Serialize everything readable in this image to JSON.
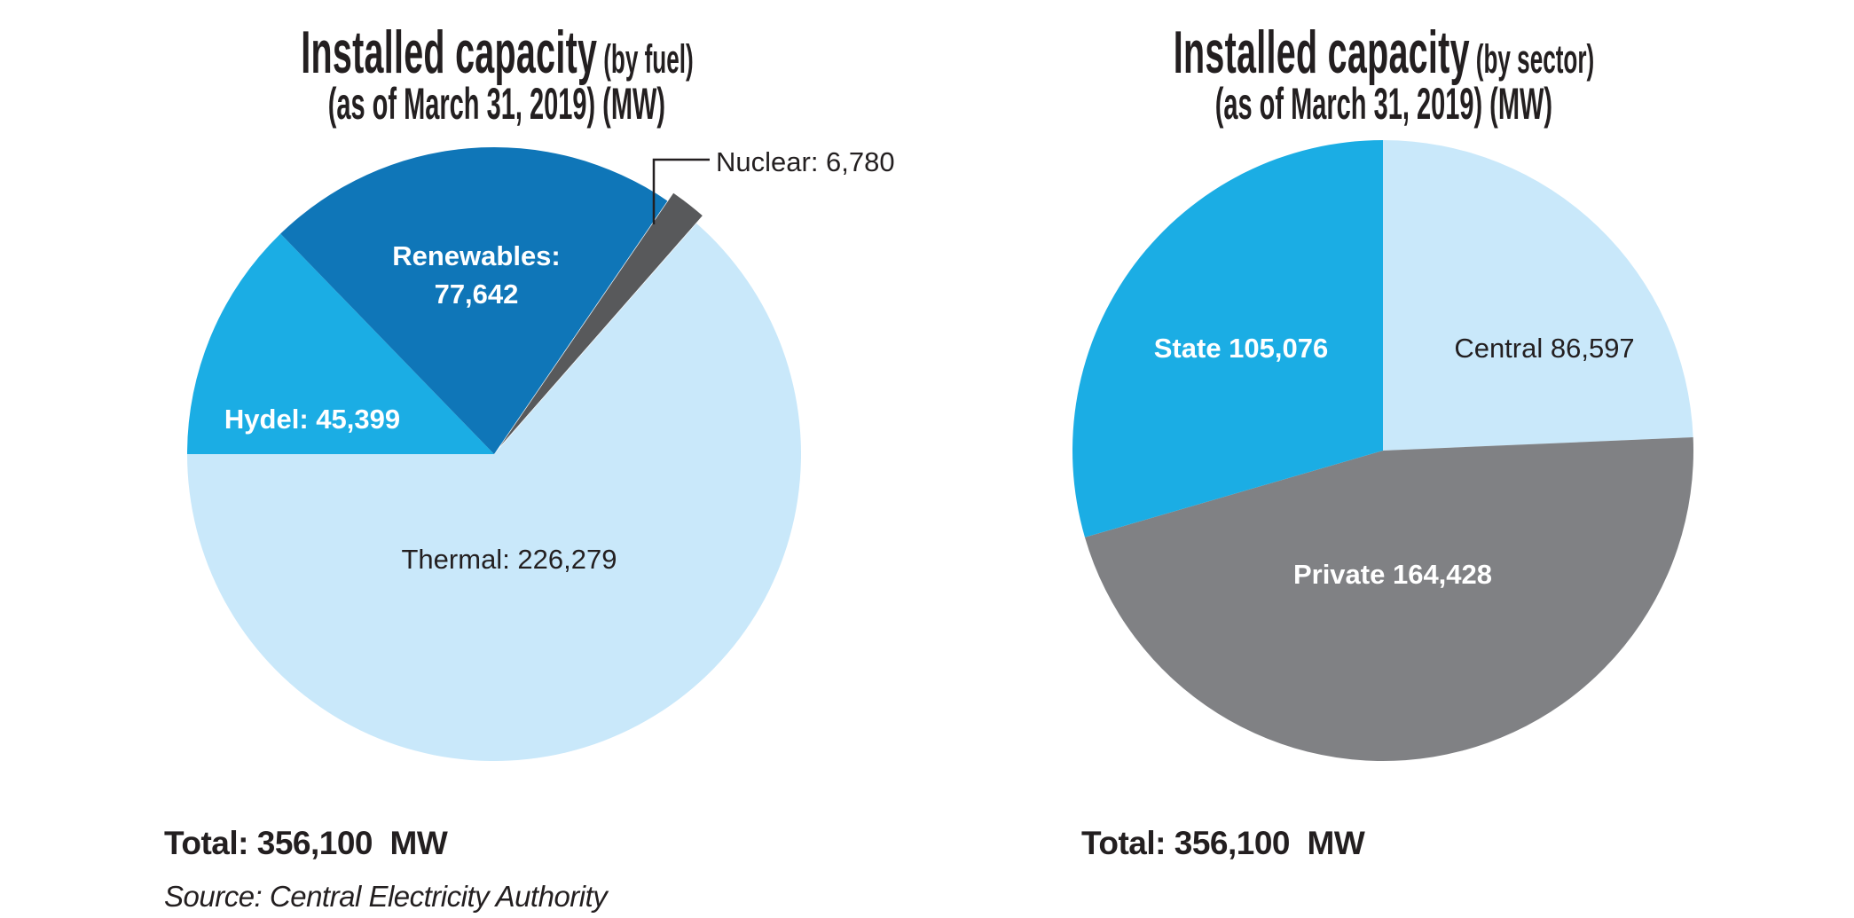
{
  "page_background": "#ffffff",
  "text_color": "#231F20",
  "chart_data": [
    {
      "type": "pie",
      "title": "Installed capacity",
      "title_qualifier": "(by fuel)",
      "subtitle": "(as of March 31, 2019) (MW)",
      "total_label": "Total: 356,100  MW",
      "source": "Source: Central Electricity Authority",
      "total_value": 356100,
      "unit": "MW",
      "start_angle_clockwise_from_12": 270,
      "legend_position": "inside-slices",
      "slices": [
        {
          "name": "Hydel",
          "value": 45399,
          "display": "Hydel: 45,399",
          "color": "#1BADE4",
          "label_color": "#FFFFFF",
          "label_weight": "bold",
          "exploded": false
        },
        {
          "name": "Renewables",
          "value": 77642,
          "display": "Renewables:\n77,642",
          "color": "#0F76B8",
          "label_color": "#FFFFFF",
          "label_weight": "bold",
          "exploded": false
        },
        {
          "name": "Nuclear",
          "value": 6780,
          "display": "Nuclear: 6,780",
          "color": "#58595B",
          "label_color": "#231F20",
          "label_weight": "normal",
          "exploded": true
        },
        {
          "name": "Thermal",
          "value": 226279,
          "display": "Thermal: 226,279",
          "color": "#C9E8FA",
          "label_color": "#231F20",
          "label_weight": "normal",
          "exploded": false
        }
      ]
    },
    {
      "type": "pie",
      "title": "Installed capacity",
      "title_qualifier": "(by sector)",
      "subtitle": "(as of March 31, 2019) (MW)",
      "total_label": "Total: 356,100  MW",
      "source": "",
      "total_value": 356100,
      "unit": "MW",
      "start_angle_clockwise_from_12": 0,
      "legend_position": "inside-slices",
      "slices": [
        {
          "name": "Central",
          "value": 86597,
          "display": "Central 86,597",
          "color": "#C9E8FA",
          "label_color": "#231F20",
          "label_weight": "normal",
          "exploded": false
        },
        {
          "name": "Private",
          "value": 164428,
          "display": "Private 164,428",
          "color": "#808184",
          "label_color": "#FFFFFF",
          "label_weight": "bold",
          "exploded": false
        },
        {
          "name": "State",
          "value": 105076,
          "display": "State 105,076",
          "color": "#1BADE4",
          "label_color": "#FFFFFF",
          "label_weight": "bold",
          "exploded": false
        }
      ]
    }
  ]
}
